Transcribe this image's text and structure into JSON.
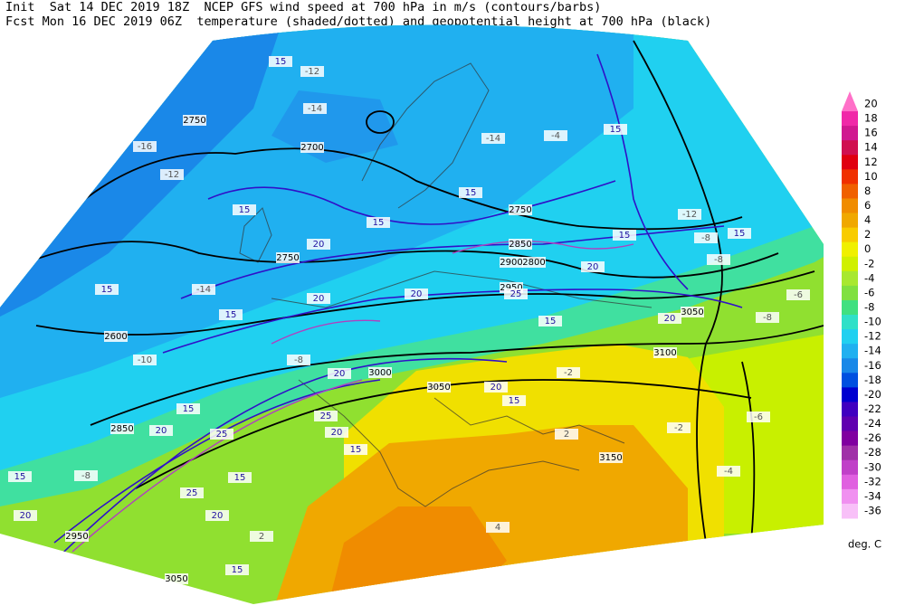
{
  "header": {
    "line1": "Init  Sat 14 DEC 2019 18Z  NCEP GFS wind speed at 700 hPa in m/s (contours/barbs)",
    "line2": "Fcst Mon 16 DEC 2019 06Z  temperature (shaded/dotted) and geopotential height at 700 hPa (black)"
  },
  "colorbar": {
    "levels": [
      20,
      18,
      16,
      14,
      12,
      10,
      8,
      6,
      4,
      2,
      0,
      -2,
      -4,
      -6,
      -8,
      -10,
      -12,
      -14,
      -16,
      -18,
      -20,
      -22,
      -24,
      -26,
      -28,
      -30,
      -32,
      -34,
      -36
    ],
    "colors": [
      "#ff70c8",
      "#f028a8",
      "#d01890",
      "#d01050",
      "#e00010",
      "#f03000",
      "#f06000",
      "#f08c00",
      "#f0a800",
      "#f8cc00",
      "#f0f000",
      "#d0f000",
      "#a8e830",
      "#80e040",
      "#40e080",
      "#30e0c8",
      "#20d0f0",
      "#20b0f0",
      "#1888e8",
      "#0050e0",
      "#0000d0",
      "#4000c0",
      "#6000b0",
      "#8000a0",
      "#a030a8",
      "#c040c8",
      "#e060e0",
      "#f090f0",
      "#f8c0f8"
    ],
    "unit": "deg. C"
  },
  "map": {
    "height_labels": [
      "2750",
      "2700",
      "2750",
      "2600",
      "2850",
      "3000",
      "3050",
      "3100",
      "3050",
      "2950",
      "2900",
      "2850",
      "2800",
      "2750",
      "3150",
      "3050",
      "2950"
    ],
    "wind_labels": [
      "15",
      "15",
      "15",
      "15",
      "20",
      "15",
      "15",
      "15",
      "20",
      "20",
      "20",
      "15",
      "20",
      "15",
      "15",
      "20",
      "20",
      "15",
      "15",
      "20",
      "20",
      "15",
      "15",
      "20",
      "15",
      "15",
      "20",
      "25",
      "25",
      "25",
      "25"
    ],
    "temp_labels": [
      "-16",
      "-14",
      "-12",
      "-14",
      "-4",
      "-14",
      "-12",
      "-8",
      "-8",
      "-6",
      "-8",
      "-6",
      "-4",
      "-2",
      "-2",
      "2",
      "4",
      "2",
      "-8",
      "-10",
      "-8",
      "-12"
    ]
  }
}
